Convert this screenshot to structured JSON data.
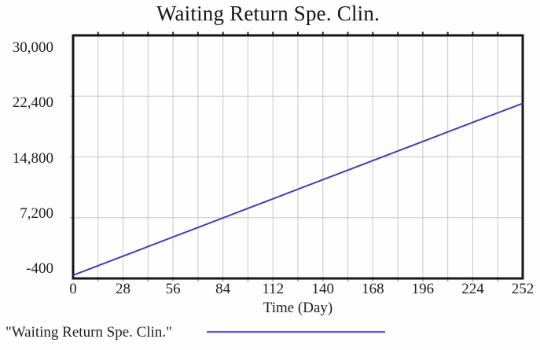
{
  "title": "Waiting Return Spe. Clin.",
  "chart_data": {
    "type": "line",
    "title": "Waiting Return Spe. Clin.",
    "xlabel": "Time (Day)",
    "ylabel": "",
    "xlim": [
      0,
      252
    ],
    "ylim": [
      -400,
      30000
    ],
    "xticks": [
      0,
      28,
      56,
      84,
      112,
      140,
      168,
      196,
      224,
      252
    ],
    "yticks": [
      30000,
      22400,
      14800,
      7200,
      -400
    ],
    "ytick_labels": [
      "30,000",
      "22,400",
      "14,800",
      "7,200",
      "-400"
    ],
    "grid": {
      "vertical_interval_days": 14,
      "horizontal_at": [
        7200,
        14800,
        22400
      ],
      "gridline_color": "#c7c7c7"
    },
    "legend_position": "bottom-left",
    "series": [
      {
        "name": "\"Waiting Return Spe. Clin.\"",
        "color": "#4040b0",
        "x": [
          0,
          28,
          56,
          84,
          112,
          140,
          168,
          196,
          224,
          252
        ],
        "y": [
          0,
          2390,
          4780,
          7170,
          9560,
          11950,
          14340,
          16730,
          19120,
          21500
        ]
      }
    ]
  },
  "legend": {
    "label": "\"Waiting Return Spe. Clin.\"",
    "line_color": "#5c5ce0"
  },
  "colors": {
    "plot_border": "#161616",
    "gridline": "#c7c7c7",
    "series_line": "#4040b0",
    "legend_line": "#5c5ce0",
    "text": "#1c1c1c",
    "background": "#fefefe"
  }
}
